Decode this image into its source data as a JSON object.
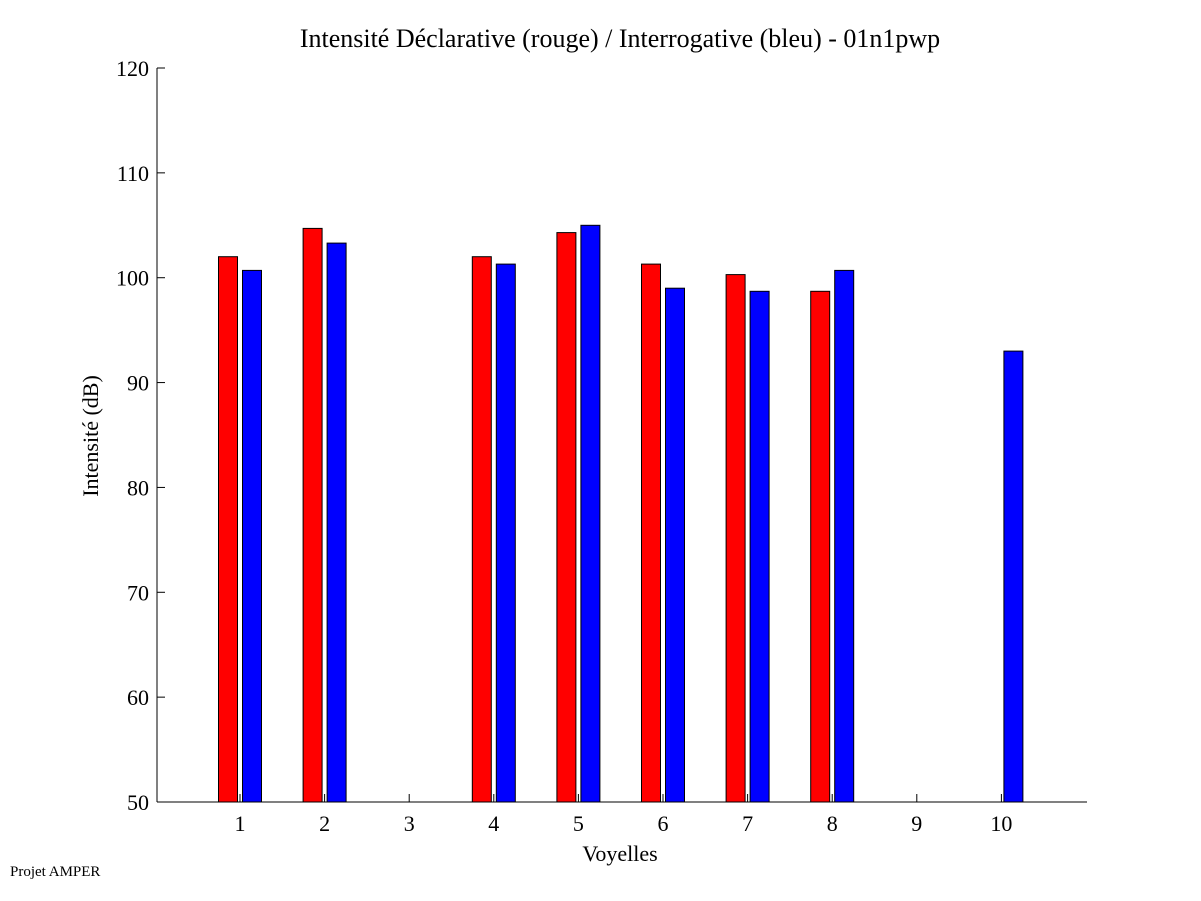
{
  "footer": {
    "label": "Projet AMPER"
  },
  "colors": {
    "declarative": "#ff0000",
    "interrogative": "#0000ff",
    "axis": "#000000",
    "background": "#ffffff"
  },
  "chart_data": {
    "type": "bar",
    "title": "Intensité Déclarative (rouge) / Interrogative (bleu) - 01n1pwp",
    "xlabel": "Voyelles",
    "ylabel": "Intensité (dB)",
    "ylim": [
      50,
      120
    ],
    "yticks": [
      50,
      60,
      70,
      80,
      90,
      100,
      110,
      120
    ],
    "categories": [
      "1",
      "2",
      "3",
      "4",
      "5",
      "6",
      "7",
      "8",
      "9",
      "10"
    ],
    "series": [
      {
        "name": "Déclarative (rouge)",
        "color": "#ff0000",
        "values": [
          102,
          104.7,
          null,
          102,
          104.3,
          101.3,
          100.3,
          98.7,
          null,
          null
        ]
      },
      {
        "name": "Interrogative (bleu)",
        "color": "#0000ff",
        "values": [
          100.7,
          103.3,
          null,
          101.3,
          105,
          99,
          98.7,
          100.7,
          null,
          93
        ]
      }
    ]
  }
}
